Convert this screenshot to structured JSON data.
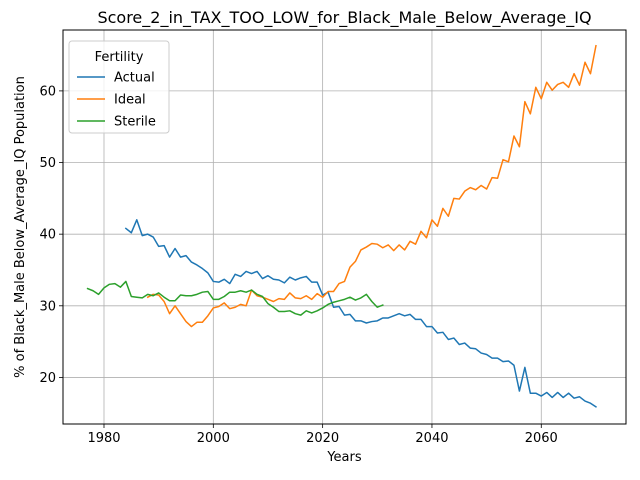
{
  "chart_data": {
    "type": "line",
    "title": "Score_2_in_TAX_TOO_LOW_for_Black_Male_Below_Average_IQ",
    "xlabel": "Years",
    "ylabel": "% of Black_Male Below_Average_IQ Population",
    "xlim": [
      1972.5,
      2075.5
    ],
    "ylim": [
      13.5,
      68.5
    ],
    "xticks": [
      1980,
      2000,
      2020,
      2040,
      2060
    ],
    "yticks": [
      20,
      30,
      40,
      50,
      60
    ],
    "grid": true,
    "legend": {
      "title": "Fertility",
      "position": "top-left"
    },
    "series": [
      {
        "name": "Actual",
        "color": "#1f77b4",
        "x": [
          1984,
          1985,
          1986,
          1987,
          1988,
          1989,
          1990,
          1991,
          1992,
          1993,
          1994,
          1995,
          1996,
          1997,
          1998,
          1999,
          2000,
          2001,
          2002,
          2003,
          2004,
          2005,
          2006,
          2007,
          2008,
          2009,
          2010,
          2011,
          2012,
          2013,
          2014,
          2015,
          2016,
          2017,
          2018,
          2019,
          2020,
          2021,
          2022,
          2023,
          2024,
          2025,
          2026,
          2027,
          2028,
          2029,
          2030,
          2031,
          2032,
          2033,
          2034,
          2035,
          2036,
          2037,
          2038,
          2039,
          2040,
          2041,
          2042,
          2043,
          2044,
          2045,
          2046,
          2047,
          2048,
          2049,
          2050,
          2051,
          2052,
          2053,
          2054,
          2055,
          2056,
          2057,
          2058,
          2059,
          2060,
          2061,
          2062,
          2063,
          2064,
          2065,
          2066,
          2067,
          2068,
          2069,
          2070
        ],
        "y": [
          40.8,
          40.2,
          42.0,
          39.8,
          40.0,
          39.6,
          38.3,
          38.4,
          36.8,
          38.0,
          36.8,
          37.0,
          36.1,
          35.7,
          35.2,
          34.6,
          33.4,
          33.3,
          33.7,
          33.1,
          34.4,
          34.1,
          34.8,
          34.5,
          34.8,
          33.8,
          34.2,
          33.7,
          33.6,
          33.2,
          34.0,
          33.6,
          33.9,
          34.1,
          33.3,
          33.3,
          31.5,
          31.9,
          29.8,
          29.9,
          28.7,
          28.8,
          27.9,
          27.9,
          27.6,
          27.8,
          27.9,
          28.3,
          28.3,
          28.6,
          28.9,
          28.6,
          28.8,
          28.1,
          28.1,
          27.1,
          27.1,
          26.2,
          26.3,
          25.3,
          25.5,
          24.6,
          24.8,
          24.1,
          24.0,
          23.4,
          23.2,
          22.7,
          22.7,
          22.2,
          22.3,
          21.7,
          18.1,
          21.4,
          17.8,
          17.8,
          17.4,
          17.9,
          17.2,
          17.9,
          17.2,
          17.8,
          17.1,
          17.3,
          16.7,
          16.4,
          15.9
        ]
      },
      {
        "name": "Ideal",
        "color": "#ff7f0e",
        "x": [
          1988,
          1989,
          1990,
          1991,
          1992,
          1993,
          1994,
          1995,
          1996,
          1997,
          1998,
          1999,
          2000,
          2001,
          2002,
          2003,
          2004,
          2005,
          2006,
          2007,
          2008,
          2009,
          2010,
          2011,
          2012,
          2013,
          2014,
          2015,
          2016,
          2017,
          2018,
          2019,
          2020,
          2021,
          2022,
          2023,
          2024,
          2025,
          2026,
          2027,
          2028,
          2029,
          2030,
          2031,
          2032,
          2033,
          2034,
          2035,
          2036,
          2037,
          2038,
          2039,
          2040,
          2041,
          2042,
          2043,
          2044,
          2045,
          2046,
          2047,
          2048,
          2049,
          2050,
          2051,
          2052,
          2053,
          2054,
          2055,
          2056,
          2057,
          2058,
          2059,
          2060,
          2061,
          2062,
          2063,
          2064,
          2065,
          2066,
          2067,
          2068,
          2069,
          2070
        ],
        "y": [
          31.2,
          31.6,
          31.5,
          30.6,
          28.9,
          30.0,
          28.9,
          27.8,
          27.1,
          27.7,
          27.7,
          28.6,
          29.7,
          29.9,
          30.4,
          29.6,
          29.8,
          30.2,
          30.0,
          32.2,
          31.4,
          31.2,
          30.9,
          30.6,
          31.0,
          30.9,
          31.8,
          31.1,
          31.0,
          31.4,
          30.9,
          31.7,
          31.2,
          32.0,
          32.0,
          33.1,
          33.4,
          35.4,
          36.2,
          37.8,
          38.2,
          38.7,
          38.6,
          38.1,
          38.5,
          37.7,
          38.5,
          37.8,
          39.0,
          38.6,
          40.4,
          39.5,
          42.0,
          41.1,
          43.6,
          42.5,
          45.0,
          44.9,
          46.0,
          46.5,
          46.2,
          46.8,
          46.3,
          47.9,
          47.8,
          50.4,
          50.1,
          53.7,
          52.2,
          58.5,
          56.8,
          60.5,
          58.9,
          61.2,
          60.1,
          60.9,
          61.2,
          60.5,
          62.4,
          60.8,
          64.0,
          62.4,
          66.3
        ]
      },
      {
        "name": "Sterile",
        "color": "#2ca02c",
        "x": [
          1977,
          1978,
          1979,
          1980,
          1981,
          1982,
          1983,
          1984,
          1985,
          1986,
          1987,
          1988,
          1989,
          1990,
          1991,
          1992,
          1993,
          1994,
          1995,
          1996,
          1997,
          1998,
          1999,
          2000,
          2001,
          2002,
          2003,
          2004,
          2005,
          2006,
          2007,
          2008,
          2009,
          2010,
          2011,
          2012,
          2013,
          2014,
          2015,
          2016,
          2017,
          2018,
          2019,
          2020,
          2021,
          2022,
          2023,
          2024,
          2025,
          2026,
          2027,
          2028,
          2029,
          2030,
          2031
        ],
        "y": [
          32.4,
          32.1,
          31.6,
          32.5,
          33.0,
          33.1,
          32.6,
          33.4,
          31.3,
          31.2,
          31.1,
          31.6,
          31.4,
          31.8,
          31.2,
          30.7,
          30.7,
          31.5,
          31.4,
          31.4,
          31.6,
          31.9,
          32.0,
          30.9,
          30.9,
          31.3,
          31.9,
          31.9,
          32.1,
          31.9,
          32.2,
          31.6,
          31.3,
          30.3,
          29.8,
          29.2,
          29.2,
          29.3,
          28.9,
          28.7,
          29.3,
          29.0,
          29.3,
          29.7,
          30.2,
          30.5,
          30.7,
          30.9,
          31.2,
          30.8,
          31.1,
          31.6,
          30.6,
          29.8,
          30.1
        ]
      }
    ]
  }
}
